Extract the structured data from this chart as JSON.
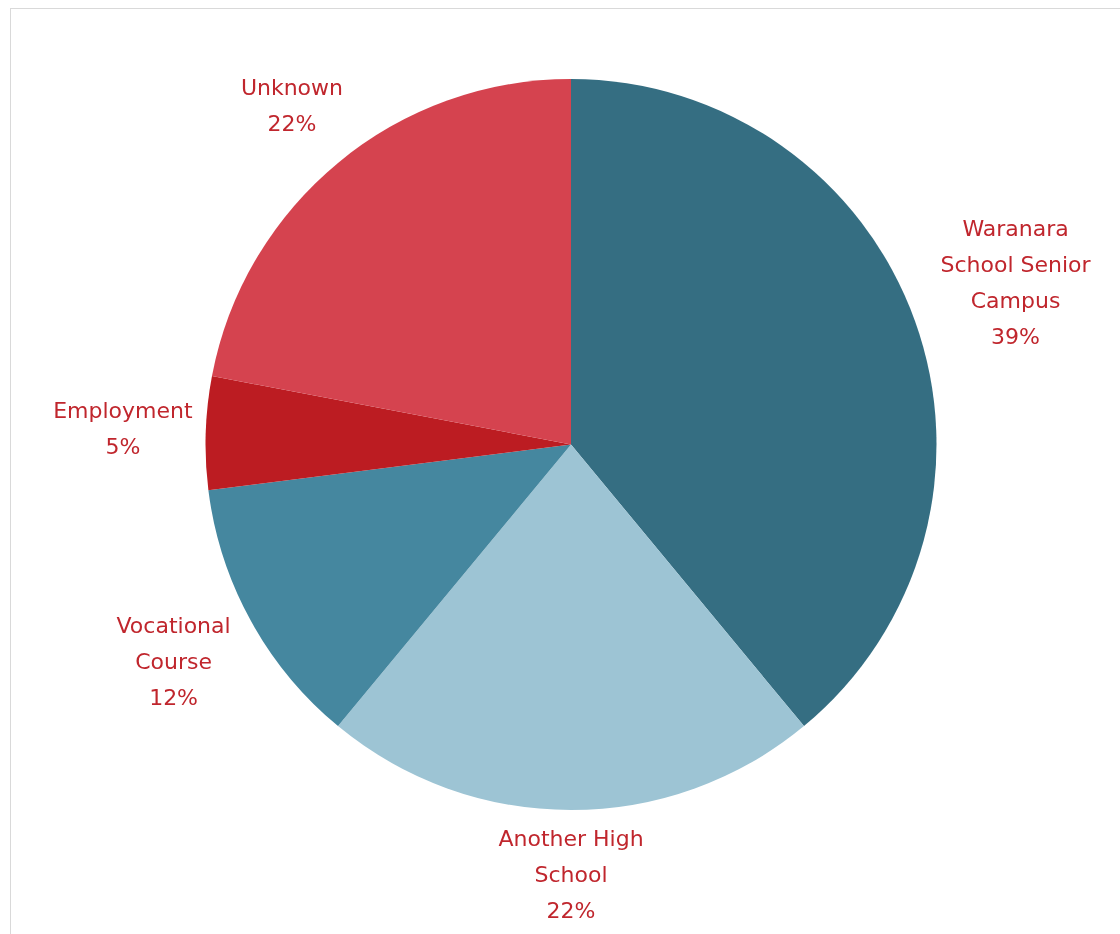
{
  "chart_data": {
    "type": "pie",
    "categories": [
      "Waranara School Senior Campus",
      "Another High School",
      "Vocational Course",
      "Employment",
      "Unknown"
    ],
    "values": [
      39,
      22,
      12,
      5,
      22
    ],
    "colors": [
      "#356e82",
      "#9dc4d4",
      "#45879f",
      "#bc1c22",
      "#d5434f"
    ],
    "value_labels": [
      "39%",
      "22%",
      "12%",
      "5%",
      "22%"
    ]
  }
}
